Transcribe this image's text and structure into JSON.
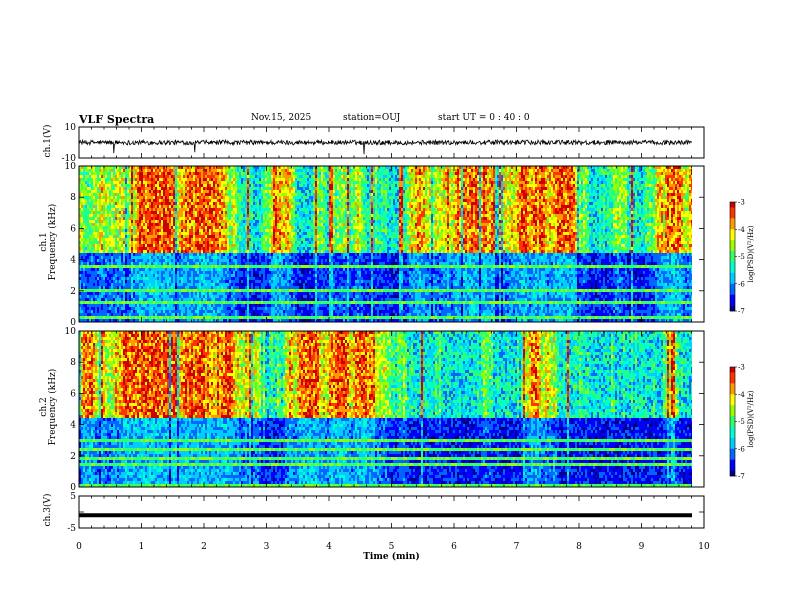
{
  "header": {
    "title": "VLF Spectra",
    "date": "Nov.15, 2025",
    "station": "station=OUJ",
    "start_ut": "start  UT =   0 : 40 : 0"
  },
  "colors": {
    "palette": [
      "#000080",
      "#0000ff",
      "#0066ff",
      "#00ccff",
      "#00ffcc",
      "#33ff66",
      "#99ff00",
      "#ffff00",
      "#ff9900",
      "#ff3300",
      "#cc0000",
      "#ffffff"
    ]
  },
  "chart_data": [
    {
      "type": "line",
      "name": "ch1-waveform",
      "ylabel": "ch.1(V)",
      "ylim": [
        -10,
        10
      ],
      "yticks": [
        -10,
        10
      ],
      "xlim": [
        0,
        10
      ],
      "description_values": {
        "baseline": 0,
        "noise_amplitude": 1.5,
        "spike_min": -8
      }
    },
    {
      "type": "heatmap",
      "name": "ch1-spectrogram",
      "ylabel": "ch.1\nFrequency (kHz)",
      "ylim": [
        0,
        10
      ],
      "yticks": [
        0,
        2,
        4,
        6,
        8,
        10
      ],
      "xlim": [
        0,
        9.85
      ],
      "colorbar": {
        "label": "log(PSD)(V²/Hz)",
        "range": [
          -7,
          -3
        ],
        "ticks": [
          -7,
          -6,
          -5,
          -4,
          -3
        ]
      }
    },
    {
      "type": "heatmap",
      "name": "ch2-spectrogram",
      "ylabel": "ch.2\nFrequency (kHz)",
      "ylim": [
        0,
        10
      ],
      "yticks": [
        0,
        2,
        4,
        6,
        8,
        10
      ],
      "xlim": [
        0,
        9.85
      ],
      "colorbar": {
        "label": "log(PSD)(V²/Hz)",
        "range": [
          -7,
          -3
        ],
        "ticks": [
          -7,
          -6,
          -5,
          -4,
          -3
        ]
      }
    },
    {
      "type": "line",
      "name": "ch3-waveform",
      "ylabel": "ch.3(V)",
      "ylim": [
        -5,
        5
      ],
      "yticks": [
        -5,
        0,
        5
      ],
      "xlim": [
        0,
        10
      ],
      "constant_value": -1.0
    }
  ],
  "xaxis": {
    "label": "Time (min)",
    "ticks": [
      "0",
      "1",
      "2",
      "3",
      "4",
      "5",
      "6",
      "7",
      "8",
      "9",
      "10"
    ]
  },
  "labels": {
    "ch1_wave": "ch.1(V)",
    "ch1_spec_a": "ch.1",
    "ch1_spec_b": "Frequency (kHz)",
    "ch2_spec_a": "ch.2",
    "ch2_spec_b": "Frequency (kHz)",
    "ch3_wave": "ch.3(V)",
    "cbar": "log(PSD)(V²/Hz)"
  }
}
